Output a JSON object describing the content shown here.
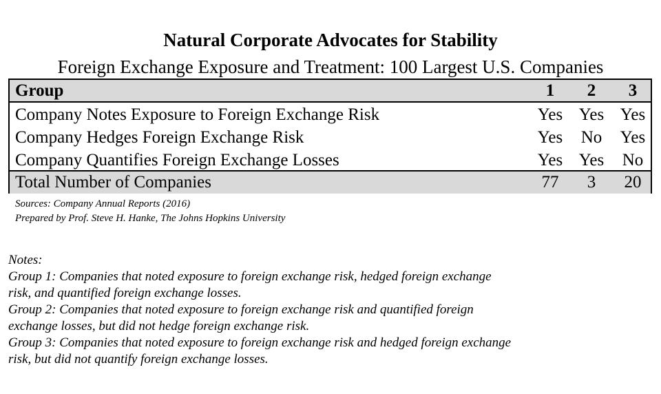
{
  "title": "Natural Corporate Advocates for Stability",
  "subtitle": "Foreign Exchange Exposure and Treatment: 100 Largest U.S. Companies",
  "table": {
    "header": {
      "label": "Group",
      "cols": [
        "1",
        "2",
        "3"
      ]
    },
    "rows": [
      {
        "label": "Company Notes Exposure to Foreign Exchange Risk",
        "values": [
          "Yes",
          "Yes",
          "Yes"
        ]
      },
      {
        "label": "Company Hedges Foreign Exchange Risk",
        "values": [
          "Yes",
          "No",
          "Yes"
        ]
      },
      {
        "label": "Company Quantifies Foreign Exchange Losses",
        "values": [
          "Yes",
          "Yes",
          "No"
        ]
      }
    ],
    "total": {
      "label": "Total Number of Companies",
      "values": [
        "77",
        "3",
        "20"
      ]
    }
  },
  "sources": [
    "Sources: Company Annual Reports (2016)",
    "Prepared by Prof. Steve H. Hanke, The Johns Hopkins University"
  ],
  "notes": [
    "Notes:",
    "Group 1: Companies that noted exposure to foreign exchange risk, hedged foreign exchange",
    "risk, and quantified foreign exchange losses.",
    "Group 2: Companies that noted exposure to foreign exchange risk and quantified foreign",
    "exchange losses, but did not hedge foreign exchange risk.",
    "Group 3: Companies that noted exposure to foreign exchange risk and hedged foreign exchange",
    "risk, but did not quantify foreign exchange losses."
  ]
}
